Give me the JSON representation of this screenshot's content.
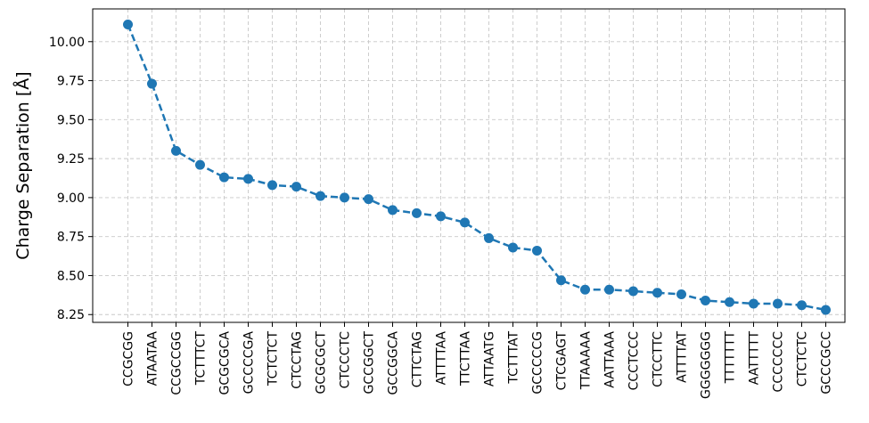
{
  "chart_data": {
    "type": "line",
    "title": "",
    "xlabel": "",
    "ylabel": "Charge Separation [Å]",
    "categories": [
      "CCGCGG",
      "ATAATAA",
      "CCGCCGG",
      "TCTTTCT",
      "GCGCGCA",
      "GCCCCGA",
      "TCTCTCT",
      "CTCCTAG",
      "GCGCGCT",
      "CTCCCTC",
      "GCCGGCT",
      "GCCGGCA",
      "CTTCTAG",
      "ATTTTAA",
      "TTCTTAA",
      "ATTAATG",
      "TCTTTAT",
      "GCCCCCG",
      "CTCGAGT",
      "TTAAAAA",
      "AATTAAA",
      "CCCTCCC",
      "CTCCTTC",
      "ATTTTAT",
      "GGGGGGG",
      "TTTTTTT",
      "AATTTTT",
      "CCCCCCC",
      "CTCTCTC",
      "GCCCGCC"
    ],
    "series": [
      {
        "values": [
          10.11,
          9.73,
          9.3,
          9.21,
          9.13,
          9.12,
          9.08,
          9.07,
          9.01,
          9.0,
          8.99,
          8.92,
          8.9,
          8.88,
          8.84,
          8.74,
          8.68,
          8.66,
          8.47,
          8.41,
          8.41,
          8.4,
          8.39,
          8.38,
          8.34,
          8.33,
          8.32,
          8.32,
          8.31,
          8.28
        ],
        "color": "#1f77b4",
        "line_style": "dashed",
        "marker": "circle"
      }
    ],
    "ylim": [
      8.2,
      10.21
    ],
    "yticks": [
      "8.25",
      "8.50",
      "8.75",
      "9.00",
      "9.25",
      "9.50",
      "9.75",
      "10.00"
    ],
    "grid": true,
    "legend": "none"
  }
}
